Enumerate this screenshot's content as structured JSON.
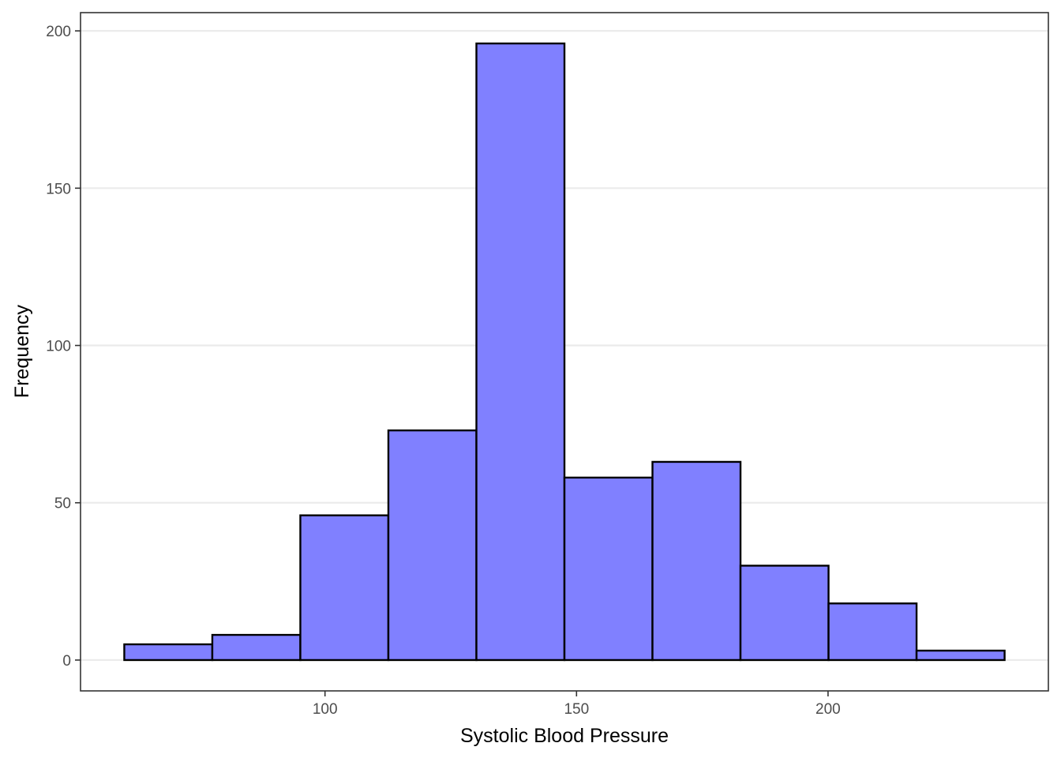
{
  "chart_data": {
    "type": "bar",
    "subtype": "histogram",
    "xlabel": "Systolic Blood Pressure",
    "ylabel": "Frequency",
    "bins": [
      {
        "start": 60.1,
        "end": 77.6,
        "count": 5
      },
      {
        "start": 77.6,
        "end": 95.1,
        "count": 8
      },
      {
        "start": 95.1,
        "end": 112.6,
        "count": 46
      },
      {
        "start": 112.6,
        "end": 130.1,
        "count": 73
      },
      {
        "start": 130.1,
        "end": 147.6,
        "count": 196
      },
      {
        "start": 147.6,
        "end": 165.1,
        "count": 58
      },
      {
        "start": 165.1,
        "end": 182.6,
        "count": 63
      },
      {
        "start": 182.6,
        "end": 200.1,
        "count": 30
      },
      {
        "start": 200.1,
        "end": 217.6,
        "count": 18
      },
      {
        "start": 217.6,
        "end": 235.1,
        "count": 3
      }
    ],
    "xlim": [
      51.4,
      243.8
    ],
    "ylim": [
      -9.8,
      205.8
    ],
    "xticks": [
      100,
      150,
      200
    ],
    "yticks": [
      0,
      50,
      100,
      150,
      200
    ],
    "grid": "horizontal",
    "colors": {
      "fill": "#8080ff",
      "outline": "#000000",
      "grid": "#ebebeb",
      "border": "#333333"
    }
  }
}
